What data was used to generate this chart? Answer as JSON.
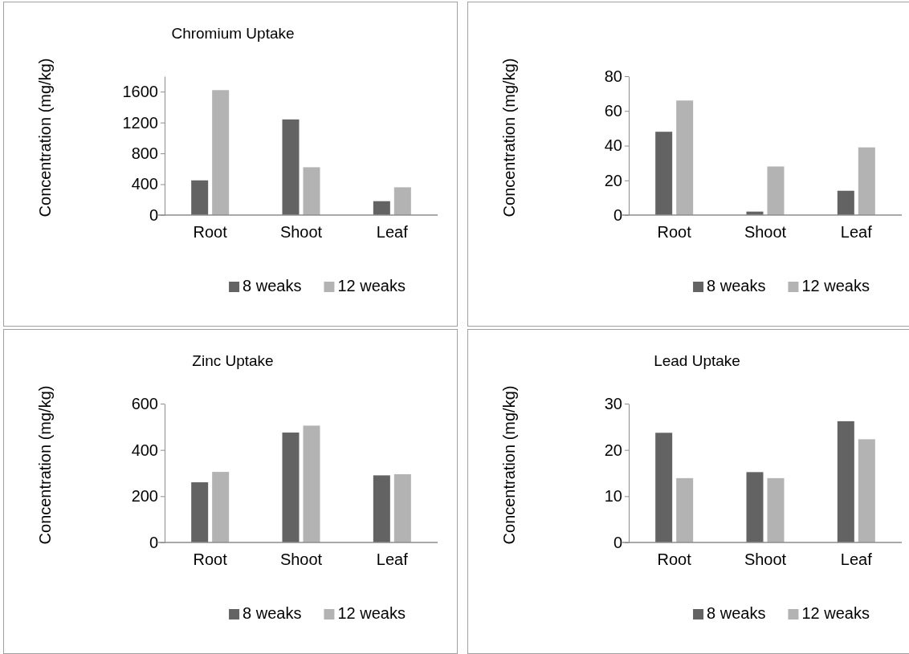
{
  "chart_data": [
    {
      "type": "bar",
      "title": "Chromium Uptake",
      "ylabel": "Concentration (mg/kg)",
      "categories": [
        "Root",
        "Shoot",
        "Leaf"
      ],
      "ylim": [
        0,
        1800
      ],
      "yticks": [
        0,
        400,
        800,
        1200,
        1600
      ],
      "legend": "bottom",
      "grid": false,
      "series": [
        {
          "name": "8 weaks",
          "color": "#636363",
          "values": [
            450,
            1240,
            180
          ]
        },
        {
          "name": "12 weaks",
          "color": "#b3b3b3",
          "values": [
            1620,
            620,
            360
          ]
        }
      ]
    },
    {
      "type": "bar",
      "ylabel": "Concentration (mg/kg)",
      "categories": [
        "Root",
        "Shoot",
        "Leaf"
      ],
      "ylim": [
        0,
        80
      ],
      "yticks": [
        0,
        20,
        40,
        60,
        80
      ],
      "legend": "bottom",
      "grid": false,
      "series": [
        {
          "name": "8 weaks",
          "color": "#636363",
          "values": [
            48,
            2,
            14
          ]
        },
        {
          "name": "12 weaks",
          "color": "#b3b3b3",
          "values": [
            66,
            28,
            39
          ]
        }
      ]
    },
    {
      "type": "bar",
      "title": "Zinc Uptake",
      "ylabel": "Concentration (mg/kg)",
      "categories": [
        "Root",
        "Shoot",
        "Leaf"
      ],
      "ylim": [
        0,
        600
      ],
      "yticks": [
        0,
        200,
        400,
        600
      ],
      "legend": "bottom",
      "grid": false,
      "series": [
        {
          "name": "8 weaks",
          "color": "#636363",
          "values": [
            260,
            475,
            290
          ]
        },
        {
          "name": "12 weaks",
          "color": "#b3b3b3",
          "values": [
            305,
            505,
            295
          ]
        }
      ]
    },
    {
      "type": "bar",
      "title": "Lead Uptake",
      "ylabel": "Concentration (mg/kg)",
      "categories": [
        "Root",
        "Shoot",
        "Leaf"
      ],
      "ylim": [
        0,
        30
      ],
      "yticks": [
        0,
        10,
        20,
        30
      ],
      "legend": "bottom",
      "grid": false,
      "series": [
        {
          "name": "8 weaks",
          "color": "#636363",
          "values": [
            23.7,
            15.2,
            26.2
          ]
        },
        {
          "name": "12 weaks",
          "color": "#b3b3b3",
          "values": [
            13.9,
            13.9,
            22.3
          ]
        }
      ]
    }
  ]
}
